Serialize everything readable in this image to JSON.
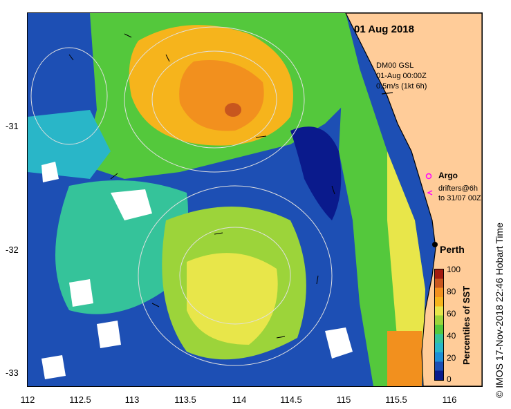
{
  "title": "01 Aug 2018",
  "model": {
    "name": "DM00 GSL",
    "time": "01-Aug 00:00Z",
    "scale": "0.5m/s (1kt 6h)"
  },
  "legend": {
    "argo": "Argo",
    "drifters": "drifters@6h",
    "drifters_to": "to 31/07 00Z"
  },
  "city": "Perth",
  "axes": {
    "x_ticks": [
      "112",
      "112.5",
      "113",
      "113.5",
      "114",
      "114.5",
      "115",
      "115.5",
      "116"
    ],
    "y_ticks": [
      "-31",
      "-32",
      "-33"
    ]
  },
  "colorbar": {
    "title": "Percentiles of SST",
    "ticks": [
      "100",
      "80",
      "60",
      "40",
      "20",
      "0"
    ],
    "colors": [
      "#0a1a8c",
      "#1d4fb4",
      "#1e8ed6",
      "#29b6c8",
      "#35c39a",
      "#54c83c",
      "#9cd43a",
      "#e8e64a",
      "#f6b41c",
      "#f2901e",
      "#c8561e",
      "#a31a10"
    ]
  },
  "credit": "© IMOS 17-Nov-2018 22:46 Hobart Time"
}
